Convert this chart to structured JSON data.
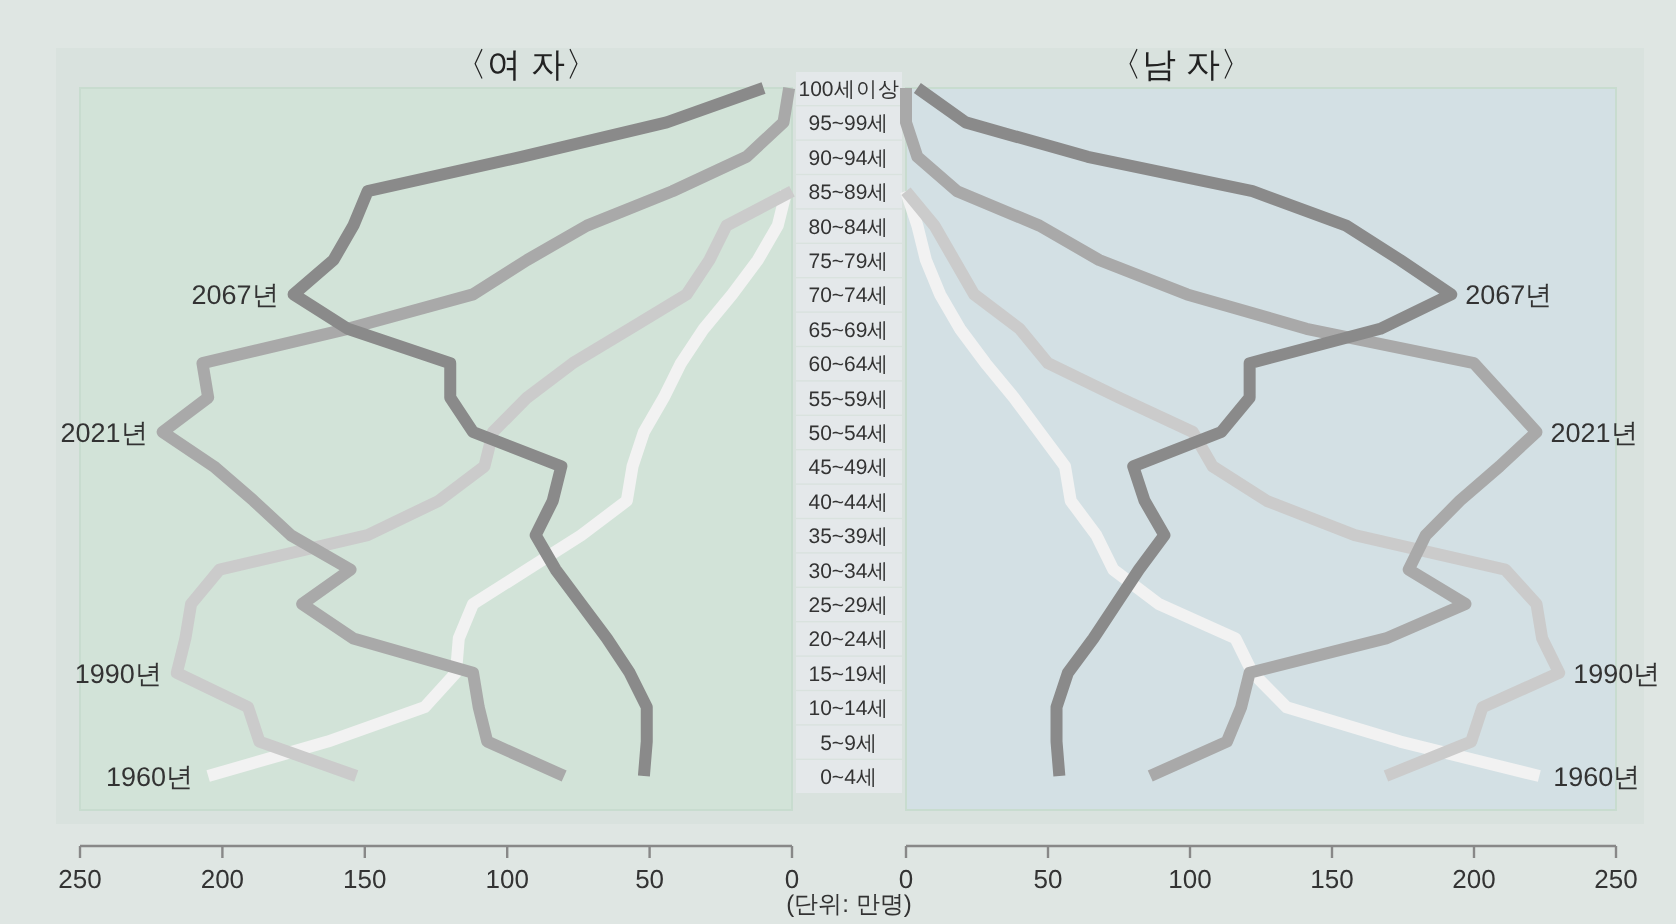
{
  "chart_data": [
    {
      "type": "line",
      "orientation": "horizontal",
      "title": "〈여 자〉",
      "annotations": [
        "(단위: 만명)"
      ],
      "categories": [
        "100세이상",
        "95~99세",
        "90~94세",
        "85~89세",
        "80~84세",
        "75~79세",
        "70~74세",
        "65~69세",
        "60~64세",
        "55~59세",
        "50~54세",
        "45~49세",
        "40~44세",
        "35~39세",
        "30~34세",
        "25~29세",
        "20~24세",
        "15~19세",
        "10~14세",
        "5~9세",
        "0~4세"
      ],
      "xlim": [
        250,
        0
      ],
      "xticks": [
        250,
        200,
        150,
        100,
        50,
        0
      ],
      "grid": false,
      "legend": false,
      "marker": "none",
      "line_style": "solid",
      "series": [
        {
          "name": "1960년",
          "color": "#f2f2f2",
          "values": [
            null,
            null,
            null,
            2,
            5,
            12,
            21,
            31,
            39,
            45,
            52,
            56,
            58,
            74,
            93,
            112,
            117,
            118,
            129,
            163,
            205
          ]
        },
        {
          "name": "1990년",
          "color": "#cbcbcb",
          "values": [
            null,
            null,
            null,
            0,
            23,
            29,
            37,
            57,
            77,
            93,
            105,
            108,
            124,
            149,
            201,
            211,
            213,
            216,
            191,
            187,
            153
          ]
        },
        {
          "name": "2021년",
          "color": "#a9a9a9",
          "values": [
            1,
            3,
            16,
            42,
            72,
            93,
            112,
            156,
            207,
            205,
            221,
            203,
            189,
            176,
            155,
            172,
            154,
            112,
            110,
            107,
            80
          ]
        },
        {
          "name": "2067년",
          "color": "#8a8a8a",
          "values": [
            10,
            44,
            95,
            149,
            154,
            161,
            175,
            156,
            120,
            120,
            112,
            81,
            84,
            90,
            83,
            74,
            65,
            57,
            51,
            51,
            52
          ]
        }
      ]
    },
    {
      "type": "line",
      "orientation": "horizontal",
      "title": "〈남 자〉",
      "tick_labels": "x",
      "xlim": [
        0,
        250
      ],
      "xticks": [
        0,
        50,
        100,
        150,
        200,
        250
      ],
      "grid": false,
      "legend": false,
      "marker": "none",
      "line_style": "solid",
      "series": [
        {
          "name": "1960년",
          "color": "#f2f2f2",
          "values": [
            null,
            null,
            null,
            0,
            4,
            7,
            12,
            19,
            28,
            38,
            47,
            56,
            58,
            67,
            73,
            89,
            116,
            122,
            134,
            174,
            223
          ]
        },
        {
          "name": "1990년",
          "color": "#cbcbcb",
          "values": [
            null,
            null,
            null,
            0,
            10,
            17,
            24,
            40,
            50,
            75,
            101,
            108,
            127,
            158,
            211,
            222,
            224,
            230,
            203,
            199,
            169
          ]
        },
        {
          "name": "2021년",
          "color": "#a9a9a9",
          "values": [
            0,
            0,
            4,
            18,
            47,
            68,
            99,
            141,
            200,
            211,
            222,
            209,
            195,
            183,
            177,
            197,
            169,
            121,
            118,
            113,
            86
          ]
        },
        {
          "name": "2067년",
          "color": "#8a8a8a",
          "values": [
            4,
            21,
            64,
            122,
            155,
            174,
            192,
            167,
            121,
            121,
            111,
            80,
            84,
            91,
            82,
            74,
            66,
            57,
            53,
            53,
            54
          ]
        }
      ]
    }
  ]
}
